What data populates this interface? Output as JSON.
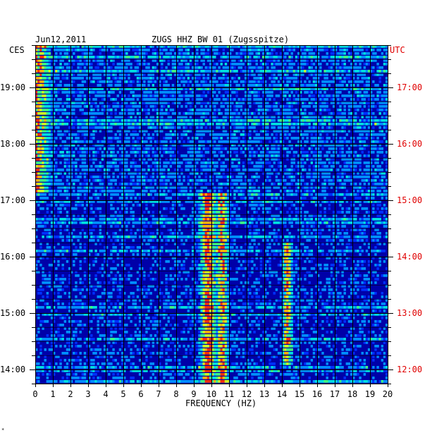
{
  "chart_data": {
    "type": "heatmap",
    "date": "Jun12,2011",
    "title": "ZUGS HHZ BW 01 (Zugsspitze)",
    "xlabel": "FREQUENCY (HZ)",
    "left_tz": "CES",
    "right_tz": "UTC",
    "xlim": [
      0,
      20
    ],
    "x_ticks": [
      "0",
      "1",
      "2",
      "3",
      "4",
      "5",
      "6",
      "7",
      "8",
      "9",
      "10",
      "11",
      "12",
      "13",
      "14",
      "15",
      "16",
      "17",
      "18",
      "19",
      "20"
    ],
    "y_range_local": [
      "13:45",
      "19:45"
    ],
    "left_ticks": [
      "19:00",
      "18:00",
      "17:00",
      "16:00",
      "15:00",
      "14:00"
    ],
    "right_ticks": [
      "17:00",
      "16:00",
      "15:00",
      "14:00",
      "13:00",
      "12:00"
    ],
    "tick_hours_from_start": [
      5.25,
      4.25,
      3.25,
      2.25,
      1.25,
      0.25
    ],
    "total_hours": 6,
    "rows": 96,
    "regime_change_hour": 3.4,
    "features": [
      {
        "kind": "low-frequency band",
        "f_from": 0,
        "f_to": 1,
        "hours": [
          3.4,
          6.0
        ],
        "level": 0.85
      },
      {
        "kind": "tonal band",
        "f_center": 9.8,
        "width": 0.35,
        "hours": [
          0,
          3.4
        ],
        "level": 0.9
      },
      {
        "kind": "tonal band",
        "f_center": 10.6,
        "width": 0.3,
        "hours": [
          0,
          3.4
        ],
        "level": 0.75
      },
      {
        "kind": "tonal band",
        "f_center": 14.3,
        "width": 0.25,
        "hours": [
          0.3,
          2.5
        ],
        "level": 0.7
      }
    ],
    "colors": {
      "background": "#0000a8",
      "scale": [
        "#000090",
        "#0000c8",
        "#0030ff",
        "#0090ff",
        "#00e0e0",
        "#40ff80",
        "#d0ff20",
        "#ffb000",
        "#ff3000"
      ],
      "left_axis_text": "#000000",
      "right_axis_text": "#e00000"
    },
    "grid": true
  },
  "footer": {
    "mark": "*"
  }
}
